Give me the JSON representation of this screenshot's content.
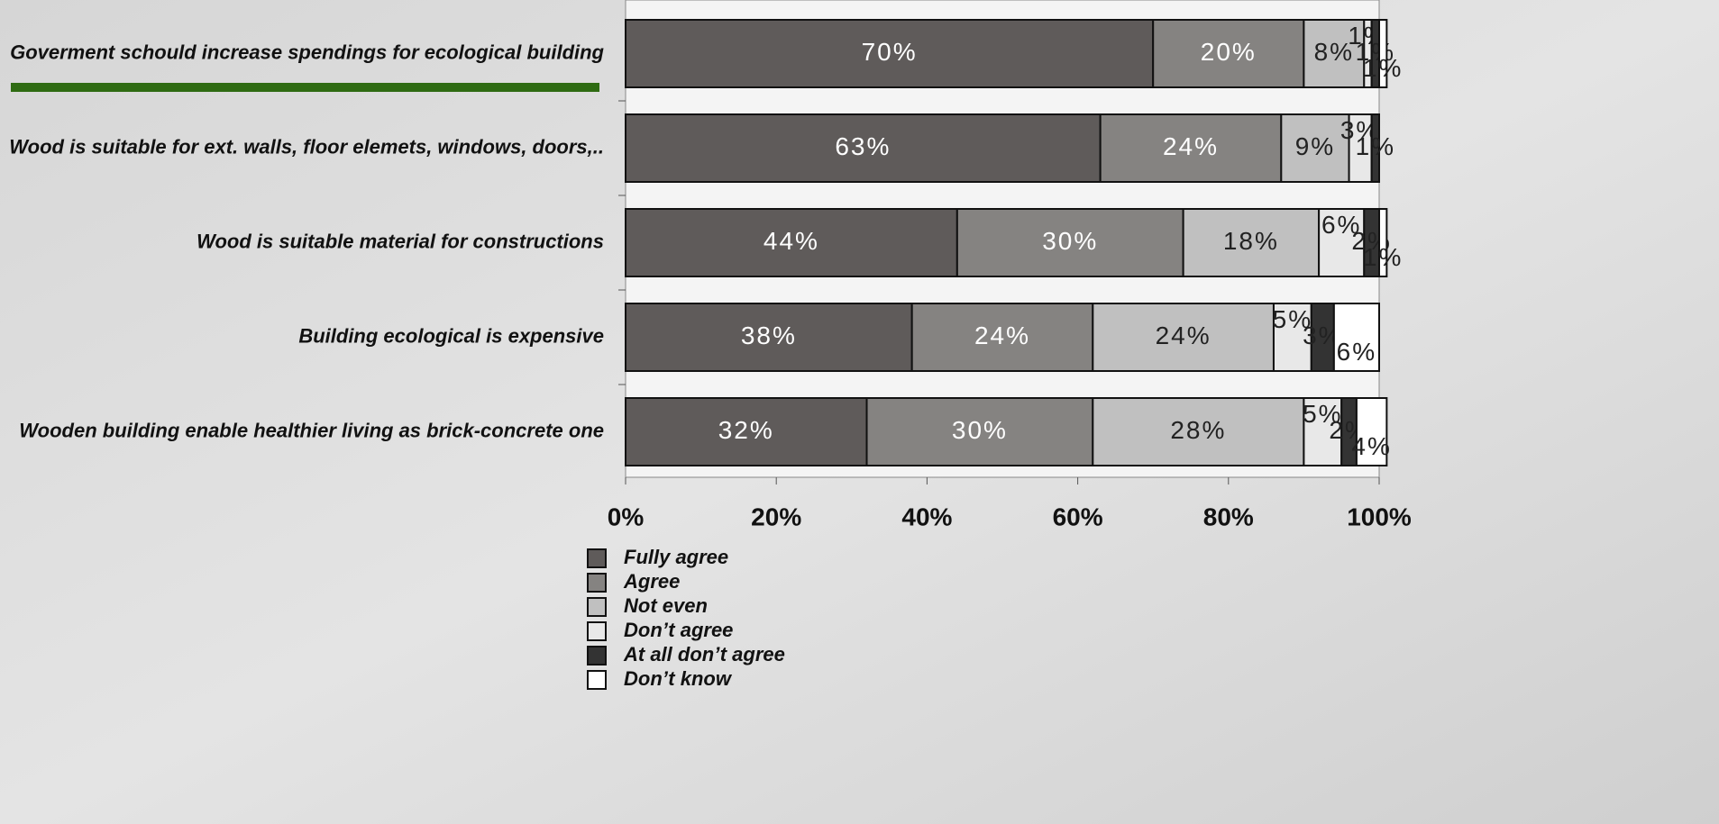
{
  "chart_data": {
    "type": "stacked-bar-horizontal",
    "categories": [
      "Goverment schould increase spendings for ecological building",
      "Wood is suitable for ext. walls, floor elemets, windows, doors,..",
      "Wood is suitable material for constructions",
      "Building ecological is expensive",
      "Wooden building enable healthier living as brick-concrete one"
    ],
    "series": [
      {
        "name": "Fully agree",
        "color": "#5f5b5a",
        "values": [
          70,
          63,
          44,
          38,
          32
        ],
        "value_labels": [
          "70%",
          "63%",
          "44%",
          "38%",
          "32%"
        ]
      },
      {
        "name": "Agree",
        "color": "#858381",
        "values": [
          20,
          24,
          30,
          24,
          30
        ],
        "value_labels": [
          "20%",
          "24%",
          "30%",
          "24%",
          "30%"
        ]
      },
      {
        "name": "Not even",
        "color": "#c0c0c0",
        "values": [
          8,
          9,
          18,
          24,
          28
        ],
        "value_labels": [
          "8%",
          "9%",
          "18%",
          "24%",
          "28%"
        ]
      },
      {
        "name": "Don’t agree",
        "color": "#e8e8e8",
        "values": [
          1,
          3,
          6,
          5,
          5
        ],
        "value_labels": [
          "1%",
          "3%",
          "6%",
          "5%",
          "5%"
        ]
      },
      {
        "name": "At all don’t agree",
        "color": "#333333",
        "values": [
          1,
          1,
          2,
          3,
          2
        ],
        "value_labels": [
          "1%",
          "1%",
          "2%",
          "3%",
          "2%"
        ]
      },
      {
        "name": "Don’t know",
        "color": "#ffffff",
        "values": [
          1,
          null,
          1,
          6,
          4
        ],
        "value_labels": [
          "1%",
          null,
          "1%",
          "6%",
          "4%"
        ]
      }
    ],
    "xlim": [
      0,
      100
    ],
    "xticks": [
      {
        "value": 0,
        "label": "0%"
      },
      {
        "value": 20,
        "label": "20%"
      },
      {
        "value": 40,
        "label": "40%"
      },
      {
        "value": 60,
        "label": "60%"
      },
      {
        "value": 80,
        "label": "80%"
      },
      {
        "value": 100,
        "label": "100%"
      }
    ]
  }
}
